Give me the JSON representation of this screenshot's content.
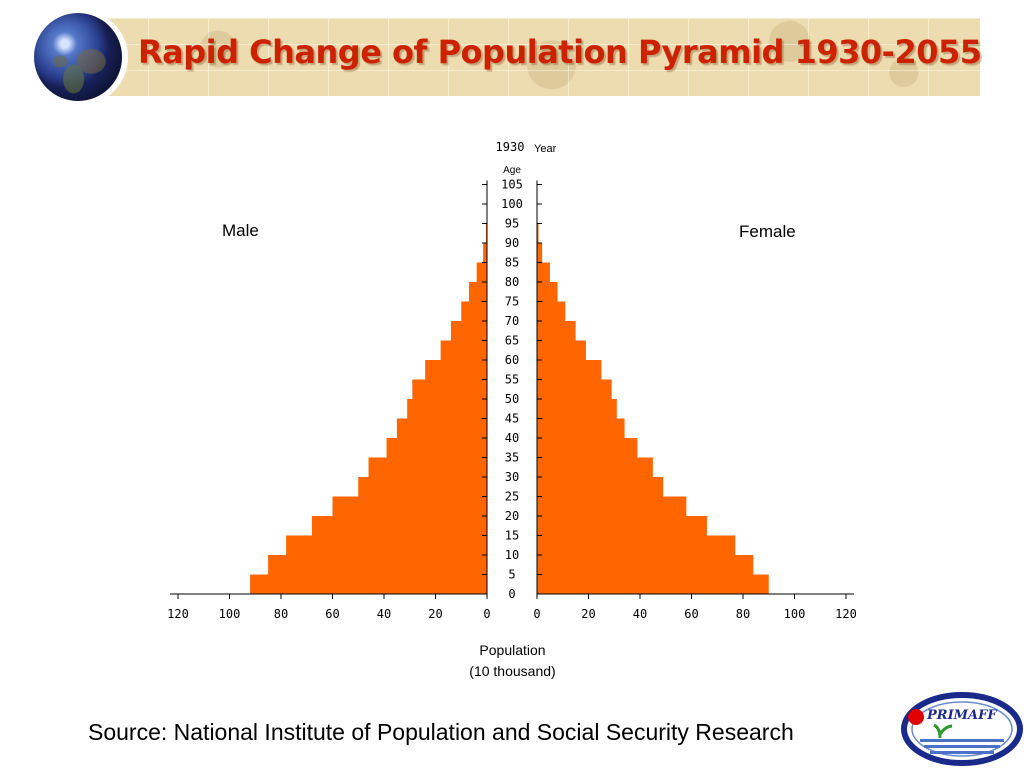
{
  "slide": {
    "title": "Rapid Change of Population Pyramid 1930-2055",
    "source": "Source: National Institute of Population and Social Security Research",
    "logo_text": "PRIMAFF"
  },
  "chart_data": {
    "type": "bar",
    "subtype": "population-pyramid",
    "year": "1930",
    "year_label": "Year",
    "age_axis_label": "Age",
    "age_ticks": [
      0,
      5,
      10,
      15,
      20,
      25,
      30,
      35,
      40,
      45,
      50,
      55,
      60,
      65,
      70,
      75,
      80,
      85,
      90,
      95,
      100,
      105
    ],
    "x_ticks": [
      120,
      100,
      80,
      60,
      40,
      20,
      0
    ],
    "xlabel": [
      "Population",
      "(10 thousand)"
    ],
    "xlim": [
      0,
      120
    ],
    "age_groups": [
      "0-4",
      "5-9",
      "10-14",
      "15-19",
      "20-24",
      "25-29",
      "30-34",
      "35-39",
      "40-44",
      "45-49",
      "50-54",
      "55-59",
      "60-64",
      "65-69",
      "70-74",
      "75-79",
      "80-84",
      "85-89",
      "90-94"
    ],
    "series": [
      {
        "name": "Male",
        "side": "left",
        "values": [
          92,
          85,
          78,
          68,
          60,
          50,
          46,
          39,
          35,
          31,
          29,
          24,
          18,
          14,
          10,
          7,
          4,
          1.5,
          0.4
        ]
      },
      {
        "name": "Female",
        "side": "right",
        "values": [
          90,
          84,
          77,
          66,
          58,
          49,
          45,
          39,
          34,
          31,
          29,
          25,
          19,
          15,
          11,
          8,
          5,
          2,
          0.6
        ]
      }
    ],
    "colors": {
      "bar": "#ff6600",
      "axis": "#000000"
    },
    "grid": false
  }
}
